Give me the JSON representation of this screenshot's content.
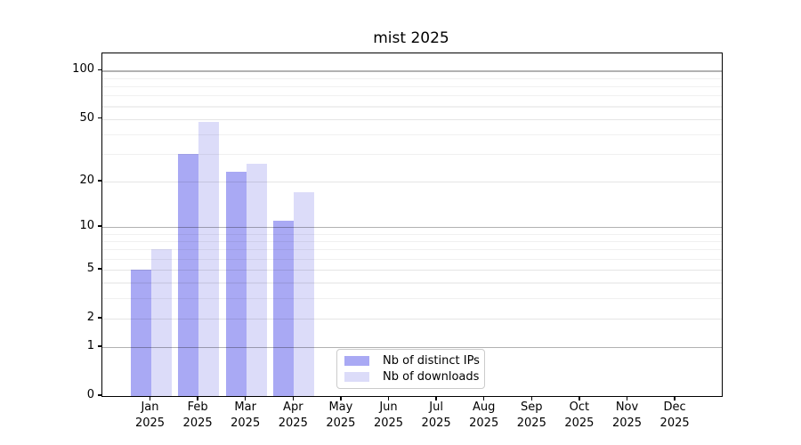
{
  "chart_data": {
    "type": "bar",
    "title": "mist 2025",
    "x_categories_line1": [
      "Jan",
      "Feb",
      "Mar",
      "Apr",
      "May",
      "Jun",
      "Jul",
      "Aug",
      "Sep",
      "Oct",
      "Nov",
      "Dec"
    ],
    "x_categories_line2": [
      "2025",
      "2025",
      "2025",
      "2025",
      "2025",
      "2025",
      "2025",
      "2025",
      "2025",
      "2025",
      "2025",
      "2025"
    ],
    "series": [
      {
        "name": "Nb of distinct IPs",
        "color": "#a9a9f4",
        "values": [
          5,
          30,
          23,
          11,
          0,
          0,
          0,
          0,
          0,
          0,
          0,
          0
        ]
      },
      {
        "name": "Nb of downloads",
        "color": "#dcdcf9",
        "values": [
          7,
          48,
          26,
          17,
          0,
          0,
          0,
          0,
          0,
          0,
          0,
          0
        ]
      }
    ],
    "yscale": "log1p",
    "ylim": [
      0,
      128
    ],
    "yticks": [
      0,
      1,
      2,
      5,
      10,
      20,
      50,
      100
    ],
    "grid": {
      "major": [
        1,
        10,
        100
      ],
      "labeled_minor": [
        2,
        5,
        20,
        50
      ],
      "minor": [
        3,
        4,
        6,
        7,
        8,
        9,
        30,
        40,
        60,
        70,
        80,
        90
      ],
      "grid_on": true,
      "grid_above_bars": true
    },
    "legend": {
      "position": "lower center",
      "entries": [
        "Nb of distinct IPs",
        "Nb of downloads"
      ]
    },
    "colors": {
      "distinct_ips": "#a9a9f4",
      "downloads": "#dcdcf9",
      "spine": "#000000",
      "major_grid": "#b3b3b3",
      "minor_grid": "#ededed",
      "background": "#ffffff"
    }
  }
}
